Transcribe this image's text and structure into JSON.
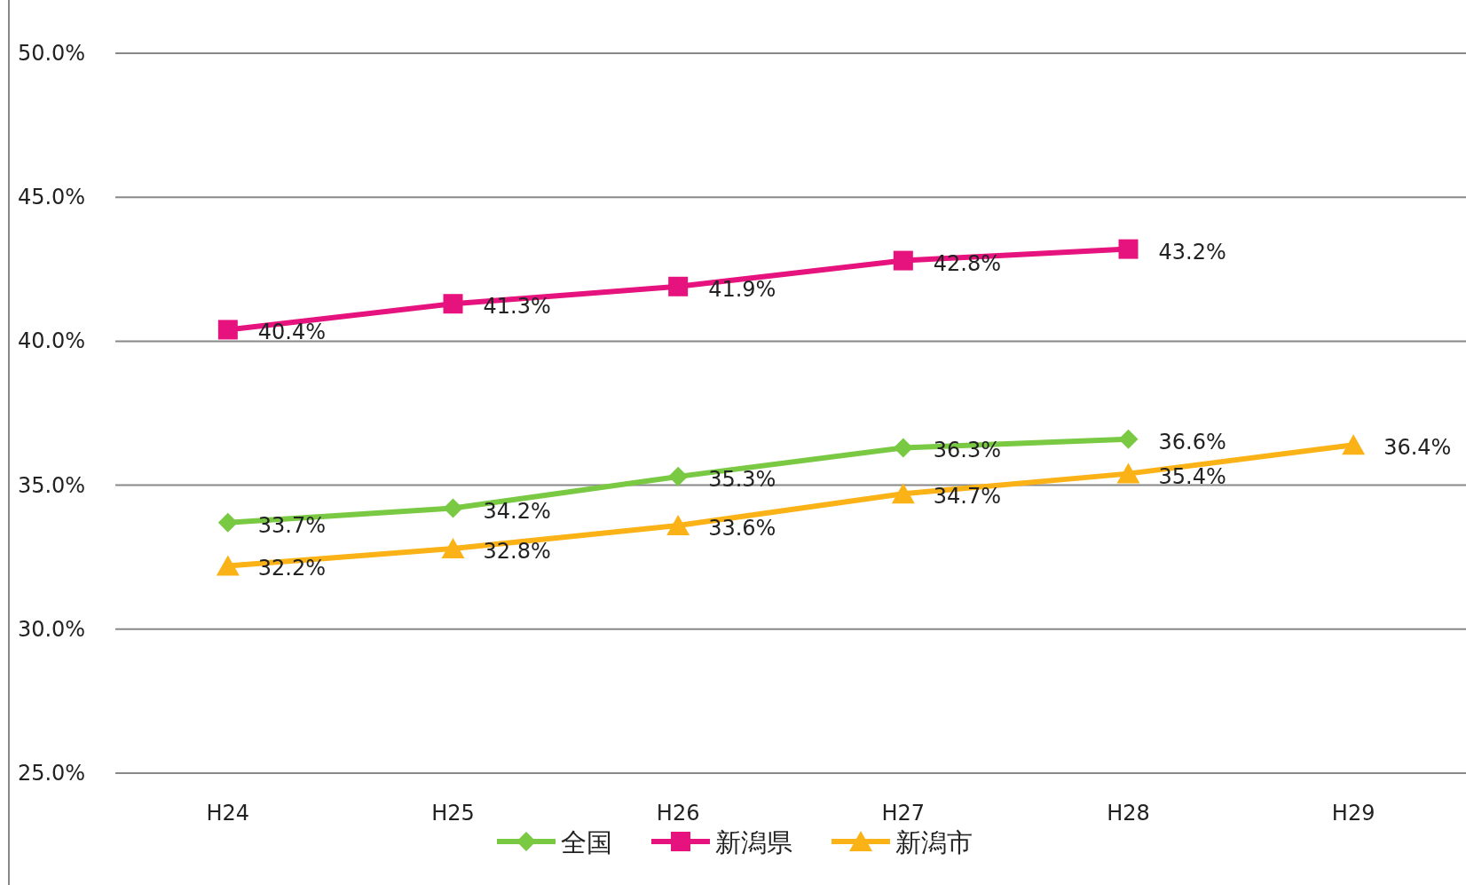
{
  "chart_data": {
    "type": "line",
    "categories": [
      "H24",
      "H25",
      "H26",
      "H27",
      "H28",
      "H29"
    ],
    "series": [
      {
        "name": "全国",
        "color": "#7ac943",
        "marker": "diamond",
        "values": [
          33.7,
          34.2,
          35.3,
          36.3,
          36.6,
          null
        ],
        "value_labels": [
          "33.7%",
          "34.2%",
          "35.3%",
          "36.3%",
          "36.6%",
          null
        ]
      },
      {
        "name": "新潟県",
        "color": "#e6127e",
        "marker": "square",
        "values": [
          40.4,
          41.3,
          41.9,
          42.8,
          43.2,
          null
        ],
        "value_labels": [
          "40.4%",
          "41.3%",
          "41.9%",
          "42.8%",
          "43.2%",
          null
        ]
      },
      {
        "name": "新潟市",
        "color": "#fbb216",
        "marker": "triangle",
        "values": [
          32.2,
          32.8,
          33.6,
          34.7,
          35.4,
          36.4
        ],
        "value_labels": [
          "32.2%",
          "32.8%",
          "33.6%",
          "34.7%",
          "35.4%",
          "36.4%"
        ]
      }
    ],
    "ylim": [
      25,
      50
    ],
    "yticks": [
      {
        "value": 25,
        "label": "25.0%"
      },
      {
        "value": 30,
        "label": "30.0%"
      },
      {
        "value": 35,
        "label": "35.0%"
      },
      {
        "value": 40,
        "label": "40.0%"
      },
      {
        "value": 45,
        "label": "45.0%"
      },
      {
        "value": 50,
        "label": "50.0%"
      }
    ],
    "grid": "y",
    "legend": "bottom"
  }
}
